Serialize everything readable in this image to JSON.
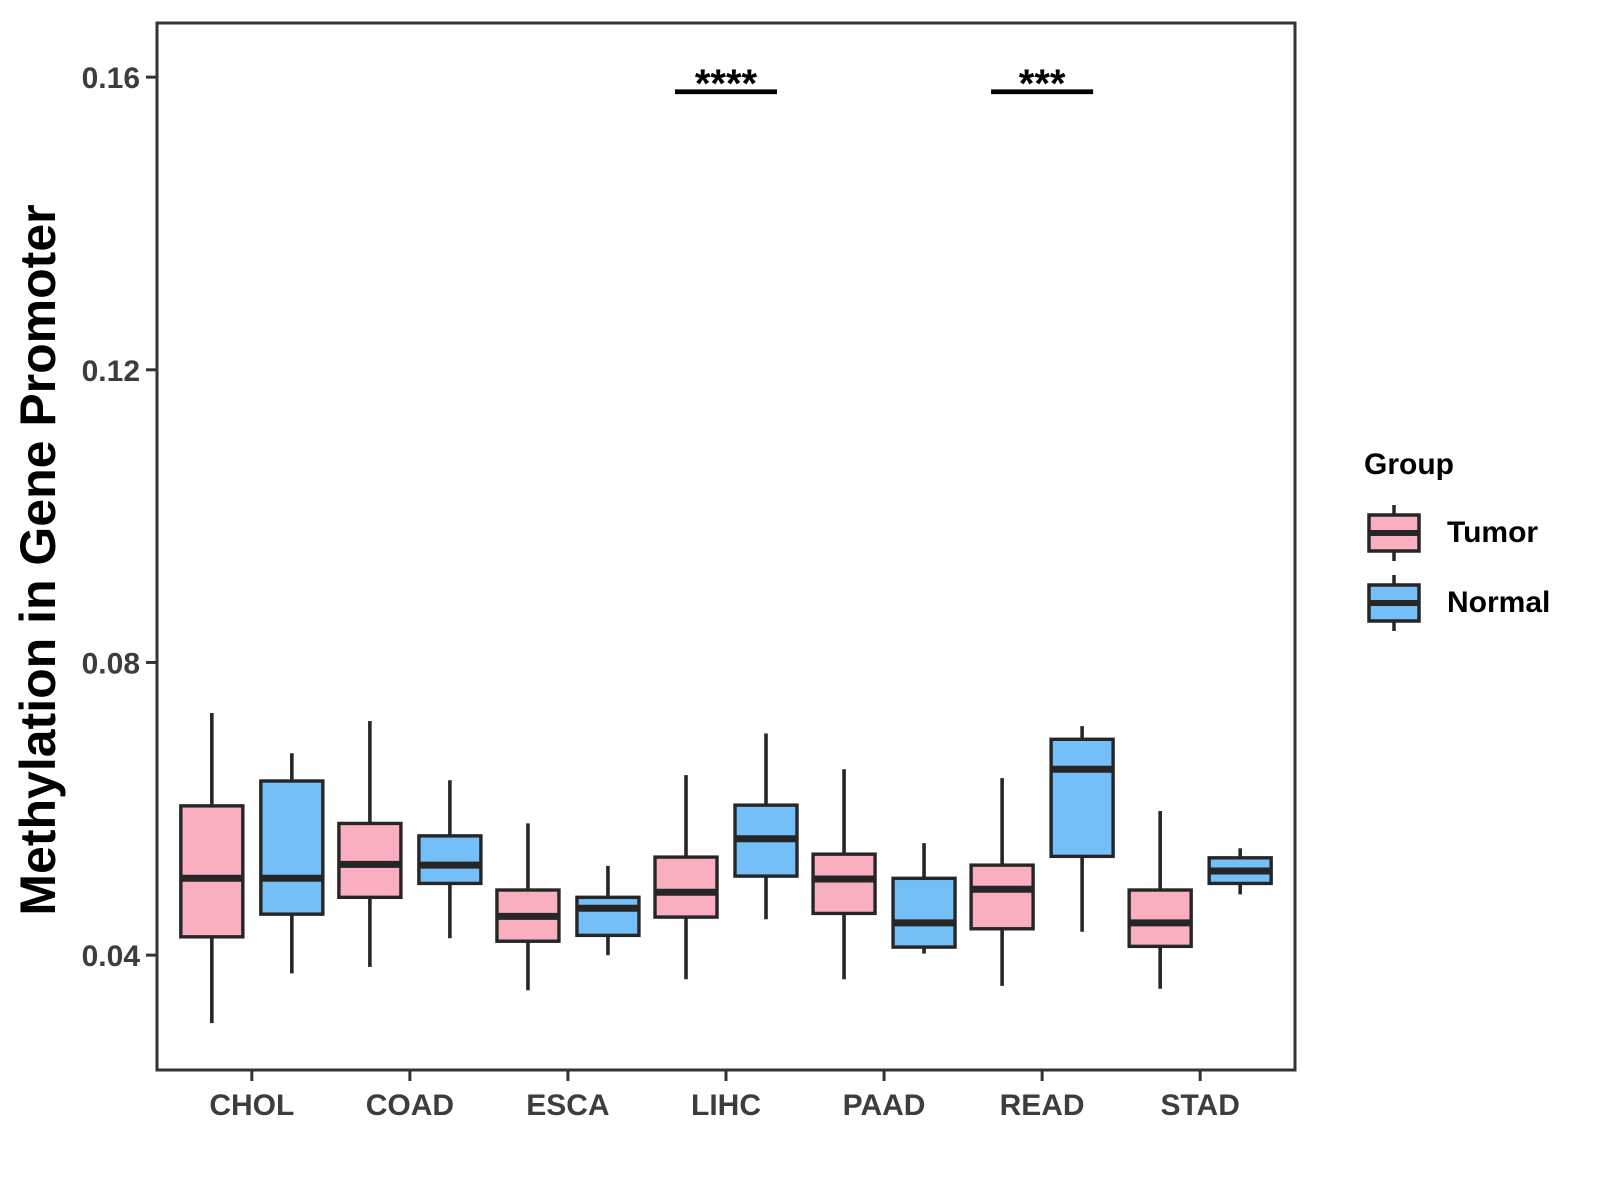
{
  "chart_data": {
    "type": "boxplot",
    "title": "",
    "xlabel": "",
    "ylabel": "Methylation in Gene Promoter",
    "categories": [
      "CHOL",
      "COAD",
      "ESCA",
      "LIHC",
      "PAAD",
      "READ",
      "STAD"
    ],
    "y_tick_labels": [
      "0.04",
      "0.08",
      "0.12",
      "0.16"
    ],
    "y_tick_values": [
      0.04,
      0.08,
      0.12,
      0.16
    ],
    "ylim": [
      0.0243,
      0.1674
    ],
    "grid": false,
    "legend_position": "right",
    "series": [
      {
        "name": "Tumor",
        "color": "#FAAFC1",
        "boxes": [
          {
            "category": "CHOL",
            "low": 0.0307,
            "q1": 0.0425,
            "median": 0.0505,
            "q3": 0.0604,
            "high": 0.0731
          },
          {
            "category": "COAD",
            "low": 0.0384,
            "q1": 0.0479,
            "median": 0.0524,
            "q3": 0.058,
            "high": 0.072
          },
          {
            "category": "ESCA",
            "low": 0.0352,
            "q1": 0.0419,
            "median": 0.0453,
            "q3": 0.0489,
            "high": 0.058
          },
          {
            "category": "LIHC",
            "low": 0.0367,
            "q1": 0.0452,
            "median": 0.0486,
            "q3": 0.0534,
            "high": 0.0646
          },
          {
            "category": "PAAD",
            "low": 0.0367,
            "q1": 0.0457,
            "median": 0.0504,
            "q3": 0.0538,
            "high": 0.0654
          },
          {
            "category": "READ",
            "low": 0.0358,
            "q1": 0.0436,
            "median": 0.049,
            "q3": 0.0523,
            "high": 0.0642
          },
          {
            "category": "STAD",
            "low": 0.0354,
            "q1": 0.0412,
            "median": 0.0444,
            "q3": 0.0489,
            "high": 0.0597
          }
        ]
      },
      {
        "name": "Normal",
        "color": "#74BFF7",
        "boxes": [
          {
            "category": "CHOL",
            "low": 0.0375,
            "q1": 0.0456,
            "median": 0.0505,
            "q3": 0.0638,
            "high": 0.0676
          },
          {
            "category": "COAD",
            "low": 0.0423,
            "q1": 0.0498,
            "median": 0.0523,
            "q3": 0.0563,
            "high": 0.0639
          },
          {
            "category": "ESCA",
            "low": 0.04,
            "q1": 0.0427,
            "median": 0.0464,
            "q3": 0.0479,
            "high": 0.0522
          },
          {
            "category": "LIHC",
            "low": 0.0449,
            "q1": 0.0508,
            "median": 0.0559,
            "q3": 0.0605,
            "high": 0.0703
          },
          {
            "category": "PAAD",
            "low": 0.0402,
            "q1": 0.0411,
            "median": 0.0444,
            "q3": 0.0505,
            "high": 0.0553
          },
          {
            "category": "READ",
            "low": 0.0432,
            "q1": 0.0535,
            "median": 0.0654,
            "q3": 0.0695,
            "high": 0.0713
          },
          {
            "category": "STAD",
            "low": 0.0483,
            "q1": 0.0498,
            "median": 0.0515,
            "q3": 0.0533,
            "high": 0.0546
          }
        ]
      }
    ],
    "annotations": [
      {
        "category": "LIHC",
        "label": "****",
        "y": 0.158
      },
      {
        "category": "READ",
        "label": "***",
        "y": 0.158
      }
    ],
    "colors": {
      "tumor_fill": "#FAAFC1",
      "normal_fill": "#74BFF7",
      "box_stroke": "#262626",
      "panel_border": "#333333",
      "axis_text": "#3d3d3d",
      "annotation": "#000000"
    }
  },
  "legend": {
    "title": "Group",
    "items": [
      {
        "label": "Tumor",
        "color": "#FAAFC1"
      },
      {
        "label": "Normal",
        "color": "#74BFF7"
      }
    ]
  }
}
